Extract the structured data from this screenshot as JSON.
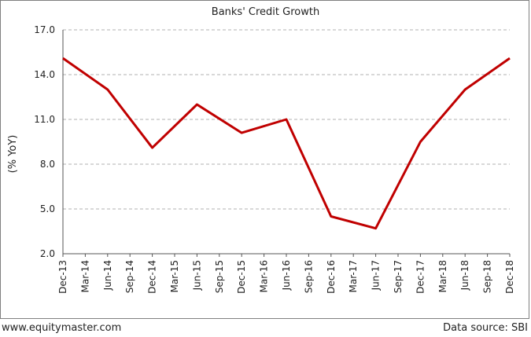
{
  "footer": {
    "site": "www.equitymaster.com",
    "source": "Data source: SBI"
  },
  "chart_data": {
    "type": "line",
    "title": "Banks' Credit Growth",
    "xlabel": "",
    "ylabel": "(% YoY)",
    "ylim": [
      2.0,
      17.0
    ],
    "yticks": [
      "2.0",
      "5.0",
      "8.0",
      "11.0",
      "14.0",
      "17.0"
    ],
    "grid": "horizontal dashed",
    "color": "#c00000",
    "categories": [
      "Dec-13",
      "Mar-14",
      "Jun-14",
      "Sep-14",
      "Dec-14",
      "Mar-15",
      "Jun-15",
      "Sep-15",
      "Dec-15",
      "Mar-16",
      "Jun-16",
      "Sep-16",
      "Dec-16",
      "Mar-17",
      "Jun-17",
      "Sep-17",
      "Dec-17",
      "Mar-18",
      "Jun-18",
      "Sep-18",
      "Dec-18"
    ],
    "values": [
      15.1,
      null,
      13.0,
      null,
      9.1,
      null,
      12.0,
      null,
      10.1,
      null,
      11.0,
      null,
      4.5,
      null,
      3.7,
      null,
      9.5,
      null,
      13.0,
      null,
      15.1
    ]
  }
}
